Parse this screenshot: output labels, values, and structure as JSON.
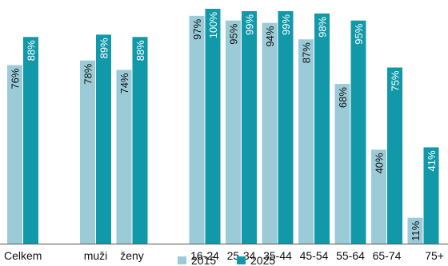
{
  "chart_data": {
    "type": "bar",
    "categories": [
      "Celkem",
      "",
      "muži",
      "ženy",
      "",
      "16-24",
      "25-34",
      "35-44",
      "45-54",
      "55-64",
      "65-74",
      "75+"
    ],
    "series": [
      {
        "name": "2015",
        "color": "#9ccbd8",
        "values": [
          76,
          null,
          78,
          74,
          null,
          97,
          95,
          94,
          87,
          68,
          40,
          11
        ]
      },
      {
        "name": "2025",
        "color": "#1199aa",
        "values": [
          88,
          null,
          89,
          88,
          null,
          100,
          99,
          99,
          98,
          95,
          75,
          41
        ]
      }
    ],
    "data_labels": {
      "2015": [
        "76%",
        "",
        "78%",
        "74%",
        "",
        "97%",
        "95%",
        "94%",
        "87%",
        "68%",
        "40%",
        "11%"
      ],
      "2025": [
        "88%",
        "",
        "89%",
        "88%",
        "",
        "100%",
        "99%",
        "99%",
        "98%",
        "95%",
        "75%",
        "41%"
      ]
    },
    "ylim": [
      0,
      100
    ],
    "grid": false,
    "legend_position": "bottom-center",
    "label_orientation": "vertical"
  }
}
